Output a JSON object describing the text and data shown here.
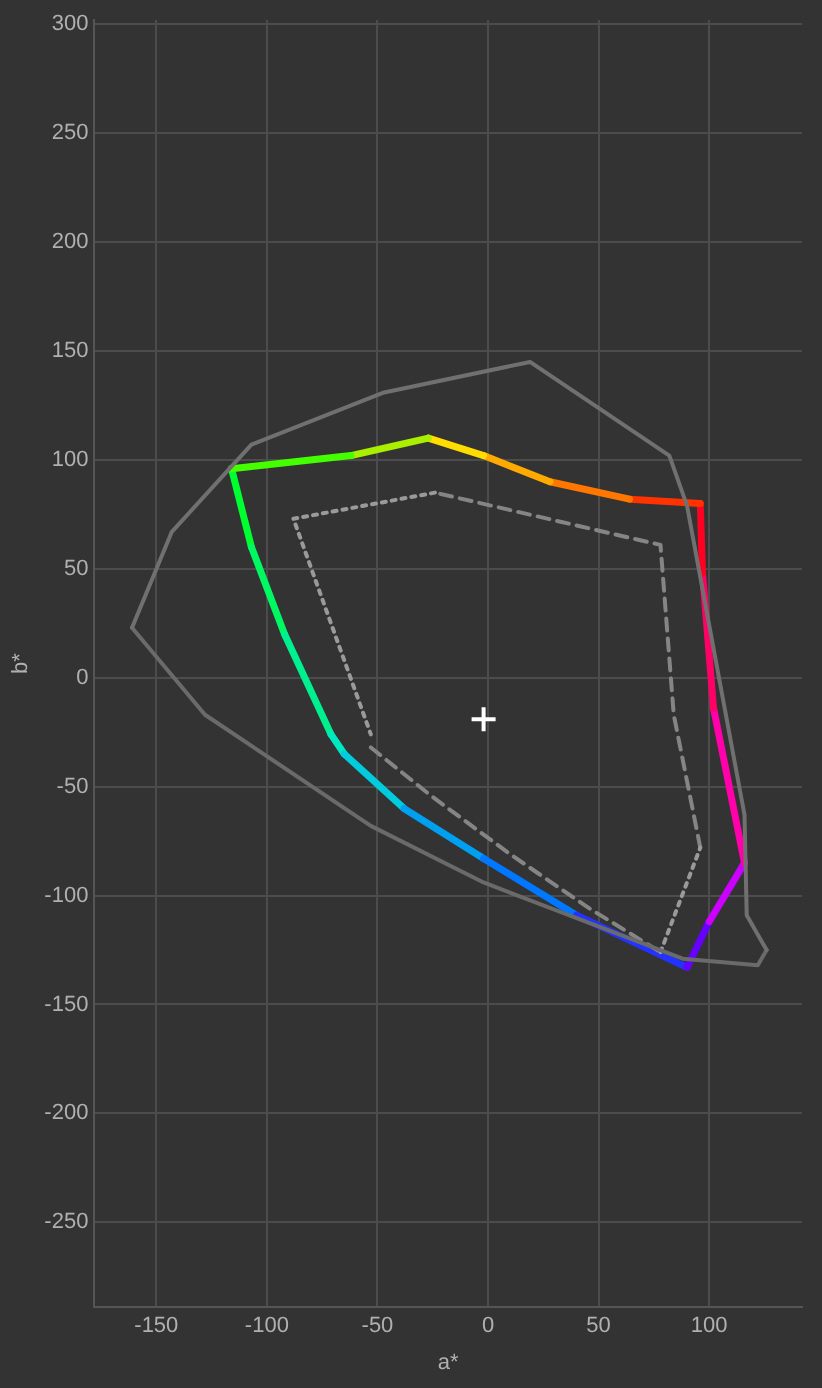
{
  "chart_data": {
    "type": "line",
    "xlabel": "a*",
    "ylabel": "b*",
    "xlim": [
      -178,
      142
    ],
    "ylim": [
      -289,
      302
    ],
    "xticks": [
      -150,
      -100,
      -50,
      0,
      50,
      100
    ],
    "yticks": [
      -250,
      -200,
      -150,
      -100,
      -50,
      0,
      50,
      100,
      150,
      200,
      250,
      300
    ],
    "grid": true,
    "legend": false,
    "marker": "none",
    "series": [
      {
        "type": "line",
        "color": "#707070",
        "line_style": "solid",
        "x": [
          -161,
          -143,
          -107,
          -47,
          19,
          82,
          90,
          116,
          117,
          126
        ],
        "values": [
          23,
          67,
          107,
          131,
          145,
          102,
          79,
          -63,
          -109,
          -125
        ]
      },
      {
        "type": "line",
        "color": "#6a6a6a",
        "line_style": "solid",
        "x": [
          126,
          122,
          88,
          -2,
          -53,
          -128,
          -161
        ],
        "values": [
          -125,
          -132,
          -129,
          -94,
          -68,
          -17,
          23
        ]
      },
      {
        "color": "#9a9a9a",
        "line_style": "dotted",
        "x": [
          -24,
          -88,
          -53
        ],
        "values": [
          85,
          73,
          -26
        ]
      },
      {
        "color": "#858585",
        "line_style": "dashed",
        "x": [
          -53,
          -26,
          10,
          46,
          78
        ],
        "values": [
          -32,
          -54,
          -81,
          -106,
          -126
        ]
      },
      {
        "color": "#9a9a9a",
        "line_style": "dotted",
        "x": [
          78,
          96
        ],
        "values": [
          -126,
          -78
        ]
      },
      {
        "color": "#858585",
        "line_style": "dashed",
        "x": [
          96,
          84,
          78,
          -24
        ],
        "values": [
          -78,
          -17,
          61,
          85
        ]
      },
      {
        "color": "#44ff00",
        "x": [
          -116,
          -62
        ],
        "values": [
          96,
          102
        ]
      },
      {
        "color": "#aaee00",
        "x": [
          -62,
          -27
        ],
        "values": [
          102,
          110
        ]
      },
      {
        "color": "#ffdd00",
        "x": [
          -27,
          -2
        ],
        "values": [
          110,
          102
        ]
      },
      {
        "color": "#ffaa00",
        "x": [
          -2,
          28
        ],
        "values": [
          102,
          90
        ]
      },
      {
        "color": "#ff7700",
        "x": [
          28,
          64
        ],
        "values": [
          90,
          82
        ]
      },
      {
        "color": "#ff3300",
        "x": [
          64,
          96
        ],
        "values": [
          82,
          80
        ]
      },
      {
        "color": "#ff0022",
        "x": [
          96,
          97
        ],
        "values": [
          80,
          48
        ]
      },
      {
        "color": "#ff0066",
        "x": [
          97,
          102
        ],
        "values": [
          48,
          -14
        ]
      },
      {
        "color": "#ff00aa",
        "x": [
          102,
          116
        ],
        "values": [
          -14,
          -85
        ]
      },
      {
        "color": "#cc00ff",
        "x": [
          116,
          100
        ],
        "values": [
          -85,
          -112
        ]
      },
      {
        "color": "#6600ff",
        "x": [
          100,
          90
        ],
        "values": [
          -112,
          -133
        ]
      },
      {
        "color": "#2233ff",
        "x": [
          90,
          40
        ],
        "values": [
          -133,
          -109
        ]
      },
      {
        "color": "#0077ff",
        "x": [
          40,
          -2
        ],
        "values": [
          -109,
          -83
        ]
      },
      {
        "color": "#00a0f0",
        "x": [
          -2,
          -38
        ],
        "values": [
          -83,
          -60
        ]
      },
      {
        "color": "#00ccdd",
        "x": [
          -38,
          -65
        ],
        "values": [
          -60,
          -35
        ]
      },
      {
        "color": "#00e8c0",
        "x": [
          -65,
          -71
        ],
        "values": [
          -35,
          -26
        ]
      },
      {
        "color": "#00f090",
        "x": [
          -71,
          -92
        ],
        "values": [
          -26,
          20
        ]
      },
      {
        "color": "#00f860",
        "x": [
          -92,
          -107
        ],
        "values": [
          20,
          60
        ]
      },
      {
        "color": "#00ff30",
        "x": [
          -107,
          -116
        ],
        "values": [
          60,
          96
        ]
      },
      {
        "type": "scatter",
        "color": "#ffffff",
        "marker": "cross",
        "x": [
          -2
        ],
        "values": [
          -19
        ]
      }
    ]
  }
}
